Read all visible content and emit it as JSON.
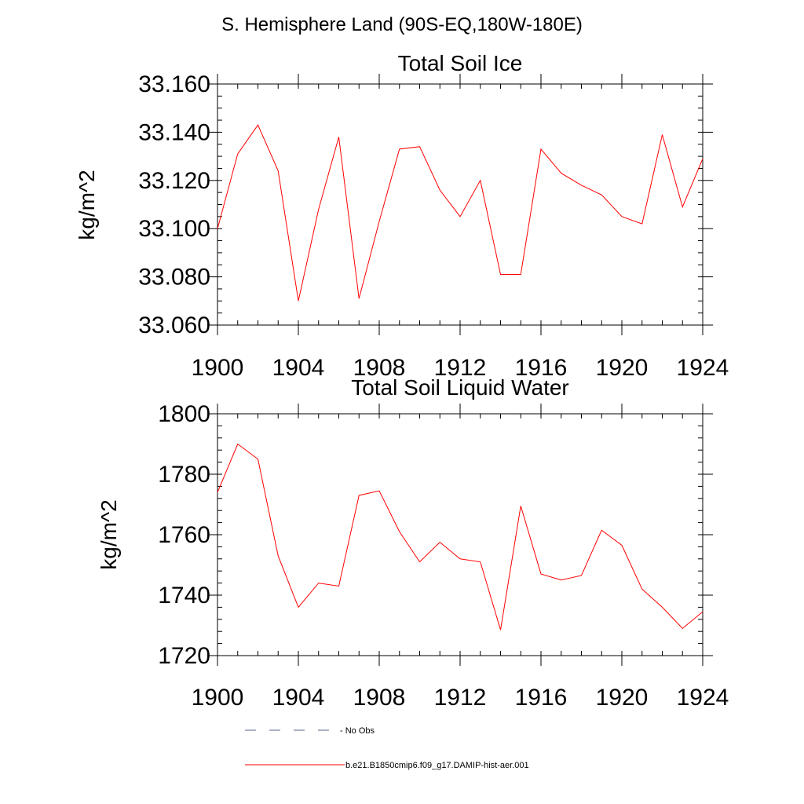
{
  "page": {
    "title": "S. Hemisphere Land (90S-EQ,180W-180E)"
  },
  "chart_data": [
    {
      "type": "line",
      "title": "Total Soil Ice",
      "xlabel": "",
      "ylabel": "kg/m^2",
      "xlim": [
        1900,
        1924
      ],
      "ylim": [
        33.06,
        33.16
      ],
      "x_ticks": [
        1900,
        1904,
        1908,
        1912,
        1916,
        1920,
        1924
      ],
      "x_tick_labels": [
        "1900",
        "1904",
        "1908",
        "1912",
        "1916",
        "1920",
        "1924"
      ],
      "y_ticks": [
        33.06,
        33.08,
        33.1,
        33.12,
        33.14,
        33.16
      ],
      "y_tick_labels": [
        "33.060",
        "33.080",
        "33.100",
        "33.120",
        "33.140",
        "33.160"
      ],
      "y_minor_step": 0.005,
      "x_minor_step": 1,
      "series": [
        {
          "name": "b.e21.B1850cmip6.f09_g17.DAMIP-hist-aer.001",
          "color": "#ff0000",
          "x": [
            1900,
            1901,
            1902,
            1903,
            1904,
            1905,
            1906,
            1907,
            1908,
            1909,
            1910,
            1911,
            1912,
            1913,
            1914,
            1915,
            1916,
            1917,
            1918,
            1919,
            1920,
            1921,
            1922,
            1923,
            1924
          ],
          "values": [
            33.1,
            33.131,
            33.143,
            33.124,
            33.07,
            33.108,
            33.138,
            33.071,
            33.103,
            33.133,
            33.134,
            33.116,
            33.105,
            33.12,
            33.081,
            33.081,
            33.133,
            33.123,
            33.118,
            33.114,
            33.105,
            33.102,
            33.139,
            33.109,
            33.129
          ]
        }
      ]
    },
    {
      "type": "line",
      "title": "Total Soil Liquid Water",
      "xlabel": "",
      "ylabel": "kg/m^2",
      "xlim": [
        1900,
        1924
      ],
      "ylim": [
        1720,
        1800
      ],
      "x_ticks": [
        1900,
        1904,
        1908,
        1912,
        1916,
        1920,
        1924
      ],
      "x_tick_labels": [
        "1900",
        "1904",
        "1908",
        "1912",
        "1916",
        "1920",
        "1924"
      ],
      "y_ticks": [
        1720,
        1740,
        1760,
        1780,
        1800
      ],
      "y_tick_labels": [
        "1720",
        "1740",
        "1760",
        "1780",
        "1800"
      ],
      "y_minor_step": 4,
      "x_minor_step": 1,
      "series": [
        {
          "name": "b.e21.B1850cmip6.f09_g17.DAMIP-hist-aer.001",
          "color": "#ff0000",
          "x": [
            1900,
            1901,
            1902,
            1903,
            1904,
            1905,
            1906,
            1907,
            1908,
            1909,
            1910,
            1911,
            1912,
            1913,
            1914,
            1915,
            1916,
            1917,
            1918,
            1919,
            1920,
            1921,
            1922,
            1923,
            1924
          ],
          "values": [
            1774,
            1790,
            1785,
            1753,
            1736,
            1744,
            1743,
            1773,
            1774.5,
            1761,
            1751,
            1757.5,
            1752,
            1751,
            1728.5,
            1769.5,
            1747,
            1745,
            1746.5,
            1761.5,
            1756.5,
            1742,
            1736,
            1729,
            1734.5
          ]
        }
      ]
    }
  ],
  "legend": {
    "placement": "bottom",
    "entries": [
      {
        "label": "No Obs",
        "style": "dashed",
        "color": "#5a6a8a"
      },
      {
        "label": "b.e21.B1850cmip6.f09_g17.DAMIP-hist-aer.001",
        "style": "solid",
        "color": "#ff0000"
      }
    ]
  }
}
